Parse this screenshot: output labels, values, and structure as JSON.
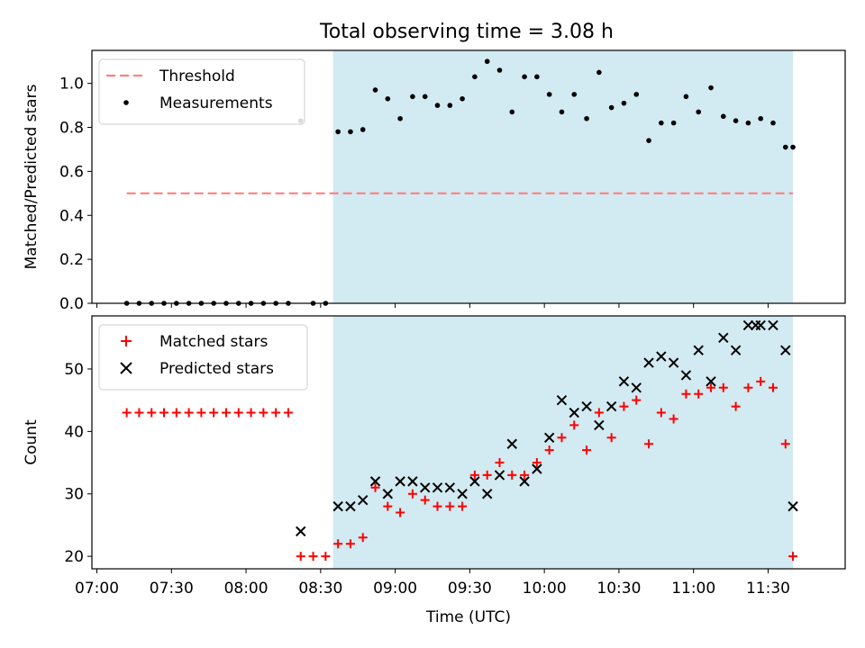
{
  "figure": {
    "title": "Total observing time = 3.08 h"
  },
  "colors": {
    "shade": "#add8e6",
    "threshold": "#ff7f7f",
    "matched": "#ff0000",
    "predicted": "#000000",
    "measurement": "#000000"
  },
  "chart_data": [
    {
      "type": "scatter",
      "panel": "top",
      "title": "Total observing time = 3.08 h",
      "xlabel": "",
      "ylabel": "Matched/Predicted stars",
      "xlim": [
        "06:58",
        "12:01"
      ],
      "ylim": [
        0,
        1.15
      ],
      "yticks": [
        0.0,
        0.2,
        0.4,
        0.6,
        0.8,
        1.0
      ],
      "ytick_labels": [
        "0.0",
        "0.2",
        "0.4",
        "0.6",
        "0.8",
        "1.0"
      ],
      "grid": false,
      "legend": "top-left",
      "shaded_interval": [
        "08:35",
        "11:40"
      ],
      "threshold": {
        "name": "Threshold",
        "y": 0.5,
        "x_range": [
          "07:12",
          "11:40"
        ],
        "style": "dashed"
      },
      "series": [
        {
          "name": "Measurements",
          "x": [
            "07:12",
            "07:17",
            "07:22",
            "07:27",
            "07:32",
            "07:37",
            "07:42",
            "07:47",
            "07:52",
            "07:57",
            "08:02",
            "08:07",
            "08:12",
            "08:17",
            "08:22",
            "08:27",
            "08:32",
            "08:37",
            "08:42",
            "08:47",
            "08:52",
            "08:57",
            "09:02",
            "09:07",
            "09:12",
            "09:17",
            "09:22",
            "09:27",
            "09:32",
            "09:37",
            "09:42",
            "09:47",
            "09:52",
            "09:57",
            "10:02",
            "10:07",
            "10:12",
            "10:17",
            "10:22",
            "10:27",
            "10:32",
            "10:37",
            "10:42",
            "10:47",
            "10:52",
            "10:57",
            "11:02",
            "11:07",
            "11:12",
            "11:17",
            "11:22",
            "11:27",
            "11:32",
            "11:37",
            "11:40"
          ],
          "y": [
            0,
            0,
            0,
            0,
            0,
            0,
            0,
            0,
            0,
            0,
            0,
            0,
            0,
            0,
            0.83,
            0,
            0,
            0.78,
            0.78,
            0.79,
            0.97,
            0.93,
            0.84,
            0.94,
            0.94,
            0.9,
            0.9,
            0.93,
            1.03,
            1.1,
            1.06,
            0.87,
            1.03,
            1.03,
            0.95,
            0.87,
            0.95,
            0.84,
            1.05,
            0.89,
            0.91,
            0.95,
            0.74,
            0.82,
            0.82,
            0.94,
            0.87,
            0.98,
            0.85,
            0.83,
            0.82,
            0.84,
            0.82,
            0.71,
            0.71
          ]
        }
      ]
    },
    {
      "type": "scatter",
      "panel": "bottom",
      "xlabel": "Time (UTC)",
      "ylabel": "Count",
      "xlim": [
        "06:58",
        "12:01"
      ],
      "ylim": [
        18,
        58.5
      ],
      "yticks": [
        20,
        30,
        40,
        50
      ],
      "ytick_labels": [
        "20",
        "30",
        "40",
        "50"
      ],
      "xticks": [
        "07:00",
        "07:30",
        "08:00",
        "08:30",
        "09:00",
        "09:30",
        "10:00",
        "10:30",
        "11:00",
        "11:30"
      ],
      "xtick_labels": [
        "07:00",
        "07:30",
        "08:00",
        "08:30",
        "09:00",
        "09:30",
        "10:00",
        "10:30",
        "11:00",
        "11:30"
      ],
      "grid": false,
      "legend": "top-left",
      "shaded_interval": [
        "08:35",
        "11:40"
      ],
      "series": [
        {
          "name": "Matched stars",
          "marker": "+",
          "x": [
            "07:12",
            "07:17",
            "07:22",
            "07:27",
            "07:32",
            "07:37",
            "07:42",
            "07:47",
            "07:52",
            "07:57",
            "08:02",
            "08:07",
            "08:12",
            "08:17",
            "08:22",
            "08:27",
            "08:32",
            "08:37",
            "08:42",
            "08:47",
            "08:52",
            "08:57",
            "09:02",
            "09:07",
            "09:12",
            "09:17",
            "09:22",
            "09:27",
            "09:32",
            "09:37",
            "09:42",
            "09:47",
            "09:52",
            "09:57",
            "10:02",
            "10:07",
            "10:12",
            "10:17",
            "10:22",
            "10:27",
            "10:32",
            "10:37",
            "10:42",
            "10:47",
            "10:52",
            "10:57",
            "11:02",
            "11:07",
            "11:12",
            "11:17",
            "11:22",
            "11:27",
            "11:32",
            "11:37",
            "11:40"
          ],
          "y": [
            43,
            43,
            43,
            43,
            43,
            43,
            43,
            43,
            43,
            43,
            43,
            43,
            43,
            43,
            20,
            20,
            20,
            22,
            22,
            23,
            31,
            28,
            27,
            30,
            29,
            28,
            28,
            28,
            33,
            33,
            35,
            33,
            33,
            35,
            37,
            39,
            41,
            37,
            43,
            39,
            44,
            45,
            38,
            43,
            42,
            46,
            46,
            47,
            47,
            44,
            47,
            48,
            47,
            38,
            20
          ]
        },
        {
          "name": "Predicted stars",
          "marker": "x",
          "x": [
            "08:22",
            "08:37",
            "08:42",
            "08:47",
            "08:52",
            "08:57",
            "09:02",
            "09:07",
            "09:12",
            "09:17",
            "09:22",
            "09:27",
            "09:32",
            "09:37",
            "09:42",
            "09:47",
            "09:52",
            "09:57",
            "10:02",
            "10:07",
            "10:12",
            "10:17",
            "10:22",
            "10:27",
            "10:32",
            "10:37",
            "10:42",
            "10:47",
            "10:52",
            "10:57",
            "11:02",
            "11:07",
            "11:12",
            "11:17",
            "11:22",
            "11:25",
            "11:27",
            "11:32",
            "11:37",
            "11:40"
          ],
          "y": [
            24,
            28,
            28,
            29,
            32,
            30,
            32,
            32,
            31,
            31,
            31,
            30,
            32,
            30,
            33,
            38,
            32,
            34,
            39,
            45,
            43,
            44,
            41,
            44,
            48,
            47,
            51,
            52,
            51,
            49,
            53,
            48,
            55,
            53,
            57,
            57,
            57,
            57,
            53,
            28
          ]
        }
      ]
    }
  ]
}
